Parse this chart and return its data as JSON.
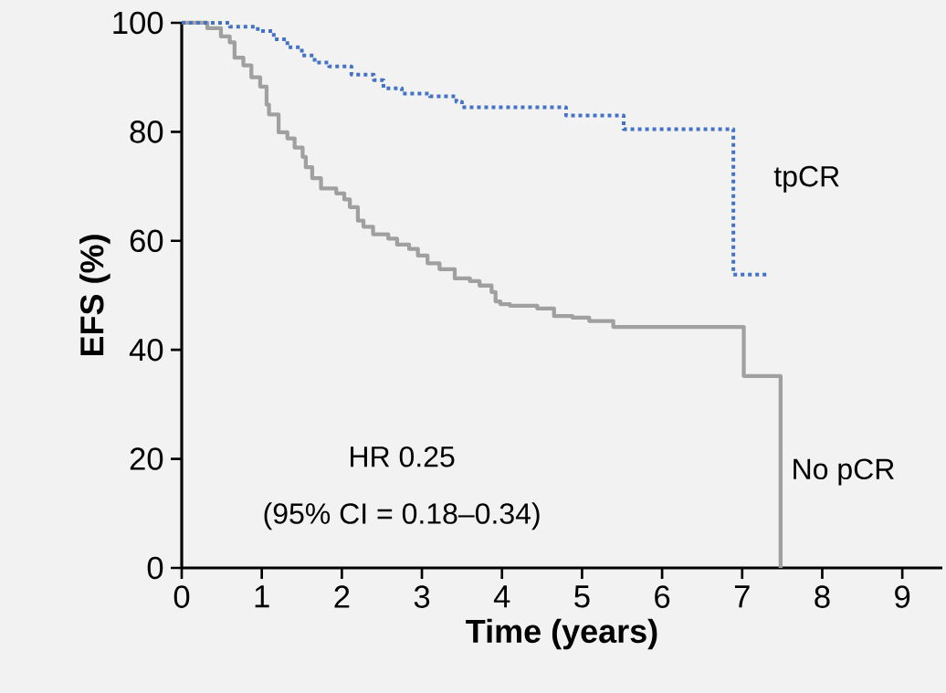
{
  "chart_data": {
    "type": "step",
    "xlabel": "Time (years)",
    "ylabel": "EFS (%)",
    "xlim": [
      0,
      9.5
    ],
    "xticks": [
      0,
      1,
      2,
      3,
      4,
      5,
      6,
      7,
      8,
      9
    ],
    "ylim": [
      0,
      100
    ],
    "yticks": [
      0,
      20,
      40,
      60,
      80,
      100
    ],
    "grid": false,
    "annotations": [
      "HR 0.25",
      "(95% CI = 0.18–0.34)"
    ],
    "series": [
      {
        "name": "tpCR",
        "color": "#4472c4",
        "line_style": "dotted",
        "x": [
          0,
          0.6,
          0.95,
          1.15,
          1.32,
          1.5,
          1.66,
          1.84,
          2.12,
          2.4,
          2.52,
          2.75,
          3.1,
          3.43,
          3.5,
          4.8,
          5.52,
          6.89,
          7.34
        ],
        "values": [
          100,
          99.3,
          98.5,
          97,
          95.5,
          94,
          92.7,
          92,
          90.5,
          89.5,
          88,
          87,
          86.5,
          85.5,
          84.5,
          83,
          80.5,
          53.8,
          53.8
        ]
      },
      {
        "name": "No pCR",
        "color": "#a0a0a0",
        "line_style": "solid",
        "x": [
          0,
          0.32,
          0.49,
          0.6,
          0.66,
          0.77,
          0.87,
          0.98,
          1.06,
          1.09,
          1.21,
          1.32,
          1.41,
          1.51,
          1.55,
          1.63,
          1.74,
          1.93,
          2.03,
          2.1,
          2.2,
          2.27,
          2.39,
          2.58,
          2.69,
          2.84,
          2.95,
          3.07,
          3.22,
          3.41,
          3.6,
          3.72,
          3.87,
          3.92,
          3.98,
          4.1,
          4.44,
          4.65,
          4.88,
          5.09,
          5.39,
          7.02,
          7.48
        ],
        "values": [
          100,
          99,
          97.5,
          96.4,
          93.6,
          92.2,
          90,
          88.3,
          85,
          83.2,
          79.9,
          78.8,
          77.1,
          75.4,
          73.5,
          71.5,
          69.6,
          68.7,
          67.6,
          66.2,
          63.7,
          62.6,
          61.2,
          60.4,
          59.3,
          58.5,
          57.3,
          55.9,
          54.8,
          53.1,
          52.6,
          51.8,
          50.6,
          48.9,
          48.4,
          48.1,
          47.6,
          46.2,
          45.9,
          45.3,
          44.2,
          35.2,
          0
        ]
      }
    ]
  }
}
